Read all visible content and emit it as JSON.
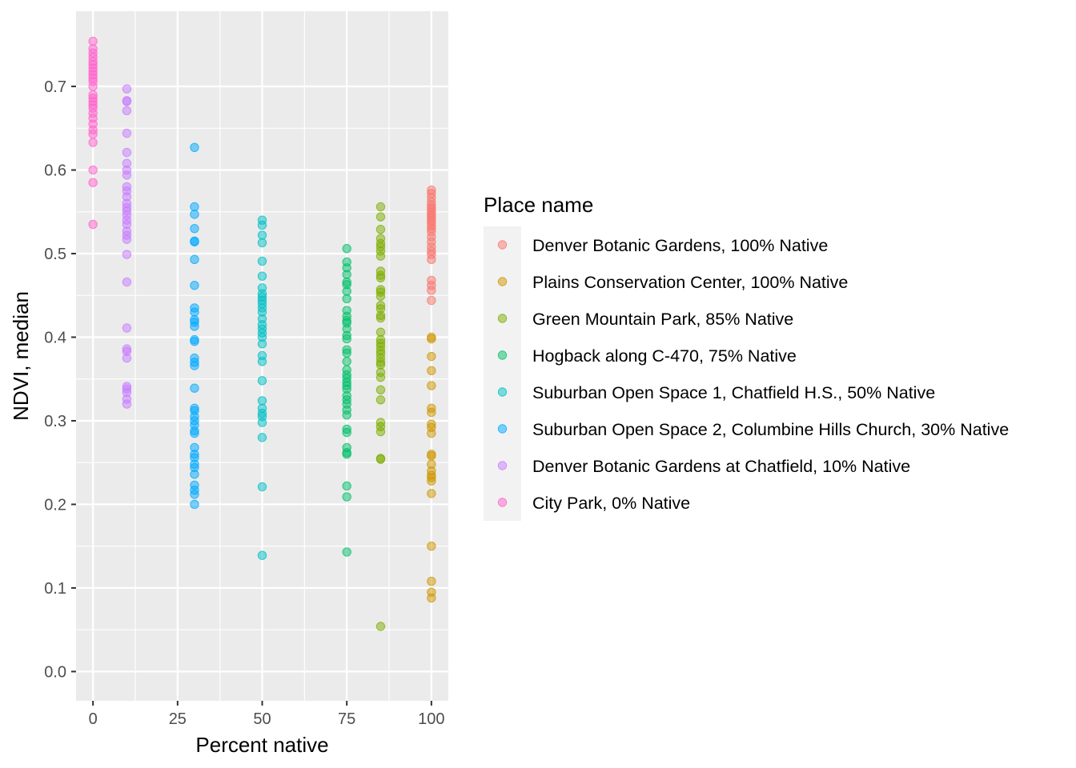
{
  "chart_data": {
    "type": "scatter",
    "title": "",
    "xlabel": "Percent native",
    "ylabel": "NDVI, median",
    "xlim": [
      -5,
      105
    ],
    "ylim": [
      -0.035,
      0.79
    ],
    "x_ticks": [
      0,
      25,
      50,
      75,
      100
    ],
    "x_tick_labels": [
      "0",
      "25",
      "50",
      "75",
      "100"
    ],
    "y_ticks": [
      0.0,
      0.1,
      0.2,
      0.3,
      0.4,
      0.5,
      0.6,
      0.7
    ],
    "y_tick_labels": [
      "0.0",
      "0.1",
      "0.2",
      "0.3",
      "0.4",
      "0.5",
      "0.6",
      "0.7"
    ],
    "grid": true,
    "legend_position": "right",
    "legend_title": "Place name",
    "series": [
      {
        "name": "Denver Botanic Gardens, 100% Native",
        "color": "#F8766D",
        "x": 100,
        "values": [
          0.576,
          0.572,
          0.567,
          0.562,
          0.558,
          0.555,
          0.552,
          0.549,
          0.546,
          0.543,
          0.54,
          0.537,
          0.533,
          0.53,
          0.526,
          0.52,
          0.514,
          0.508,
          0.503,
          0.499,
          0.493,
          0.468,
          0.462,
          0.456,
          0.444
        ]
      },
      {
        "name": "Plains Conservation Center, 100% Native",
        "color": "#CD9600",
        "x": 100,
        "values": [
          0.4,
          0.398,
          0.377,
          0.36,
          0.342,
          0.315,
          0.31,
          0.296,
          0.292,
          0.285,
          0.26,
          0.258,
          0.248,
          0.24,
          0.235,
          0.232,
          0.228,
          0.213,
          0.15,
          0.108,
          0.095,
          0.088
        ]
      },
      {
        "name": "Green Mountain Park, 85% Native",
        "color": "#7CAE00",
        "x": 85,
        "values": [
          0.556,
          0.544,
          0.529,
          0.518,
          0.512,
          0.508,
          0.503,
          0.497,
          0.479,
          0.474,
          0.471,
          0.457,
          0.454,
          0.449,
          0.438,
          0.434,
          0.426,
          0.423,
          0.406,
          0.397,
          0.393,
          0.389,
          0.384,
          0.38,
          0.375,
          0.37,
          0.367,
          0.358,
          0.352,
          0.337,
          0.325,
          0.298,
          0.293,
          0.287,
          0.255,
          0.254,
          0.054
        ]
      },
      {
        "name": "Hogback along C-470, 75% Native",
        "color": "#00BE67",
        "x": 75,
        "values": [
          0.506,
          0.49,
          0.483,
          0.475,
          0.466,
          0.463,
          0.455,
          0.446,
          0.432,
          0.425,
          0.42,
          0.417,
          0.41,
          0.402,
          0.398,
          0.385,
          0.381,
          0.371,
          0.361,
          0.355,
          0.351,
          0.346,
          0.342,
          0.338,
          0.33,
          0.325,
          0.32,
          0.313,
          0.307,
          0.29,
          0.286,
          0.268,
          0.262,
          0.26,
          0.222,
          0.209,
          0.143
        ]
      },
      {
        "name": "Suburban Open Space 1, Chatfield H.S., 50% Native",
        "color": "#00BFC4",
        "x": 50,
        "values": [
          0.54,
          0.534,
          0.522,
          0.513,
          0.491,
          0.473,
          0.459,
          0.452,
          0.448,
          0.444,
          0.44,
          0.435,
          0.43,
          0.422,
          0.415,
          0.41,
          0.405,
          0.4,
          0.392,
          0.378,
          0.371,
          0.348,
          0.324,
          0.315,
          0.309,
          0.305,
          0.298,
          0.28,
          0.221,
          0.139
        ]
      },
      {
        "name": "Suburban Open Space 2, Columbine Hills Church, 30% Native",
        "color": "#00A9FF",
        "x": 30,
        "values": [
          0.627,
          0.556,
          0.547,
          0.53,
          0.515,
          0.514,
          0.493,
          0.462,
          0.435,
          0.43,
          0.421,
          0.418,
          0.413,
          0.397,
          0.395,
          0.375,
          0.37,
          0.366,
          0.339,
          0.315,
          0.312,
          0.305,
          0.3,
          0.295,
          0.288,
          0.285,
          0.268,
          0.26,
          0.256,
          0.248,
          0.244,
          0.236,
          0.223,
          0.217,
          0.212,
          0.2
        ]
      },
      {
        "name": "Denver Botanic Gardens at Chatfield, 10% Native",
        "color": "#C77CFF",
        "x": 10,
        "values": [
          0.697,
          0.683,
          0.682,
          0.671,
          0.644,
          0.621,
          0.608,
          0.6,
          0.594,
          0.58,
          0.575,
          0.568,
          0.56,
          0.555,
          0.551,
          0.546,
          0.54,
          0.535,
          0.527,
          0.522,
          0.517,
          0.499,
          0.466,
          0.411,
          0.386,
          0.383,
          0.375,
          0.341,
          0.338,
          0.334,
          0.326,
          0.32
        ]
      },
      {
        "name": "City Park, 0% Native",
        "color": "#FF61CC",
        "x": 0,
        "values": [
          0.754,
          0.745,
          0.74,
          0.735,
          0.73,
          0.726,
          0.722,
          0.718,
          0.714,
          0.71,
          0.706,
          0.7,
          0.69,
          0.686,
          0.682,
          0.678,
          0.674,
          0.668,
          0.662,
          0.655,
          0.648,
          0.643,
          0.633,
          0.6,
          0.585,
          0.535
        ]
      }
    ]
  }
}
